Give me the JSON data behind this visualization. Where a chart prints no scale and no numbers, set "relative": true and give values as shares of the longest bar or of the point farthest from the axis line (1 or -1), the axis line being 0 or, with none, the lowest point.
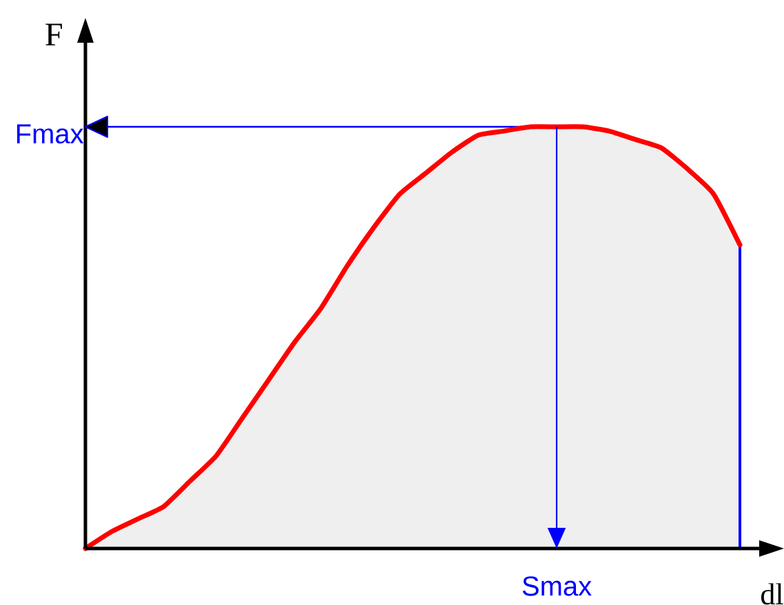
{
  "chart_data": {
    "type": "area",
    "relative": true,
    "xlabel": "dl",
    "ylabel": "F",
    "categories": [
      null,
      null,
      null,
      null,
      null,
      null,
      null,
      null,
      null,
      null,
      null,
      null,
      null,
      null,
      null,
      null,
      null,
      null,
      null,
      null,
      null,
      null,
      null,
      null,
      null,
      null
    ],
    "series": [
      {
        "color": "#ff0000",
        "values": [
          0,
          0.04,
          0.07,
          0.1,
          0.16,
          0.22,
          0.31,
          0.4,
          0.49,
          0.57,
          0.67,
          0.76,
          0.84,
          0.89,
          0.94,
          0.98,
          0.99,
          1,
          1,
          1,
          0.99,
          0.97,
          0.95,
          0.9,
          0.84,
          0.72
        ]
      }
    ],
    "ref_lines": [
      {
        "axis": "y",
        "value": 1,
        "label": "Fmax",
        "color": "#0000ff"
      }
    ],
    "annotations": [
      "Smax"
    ]
  }
}
